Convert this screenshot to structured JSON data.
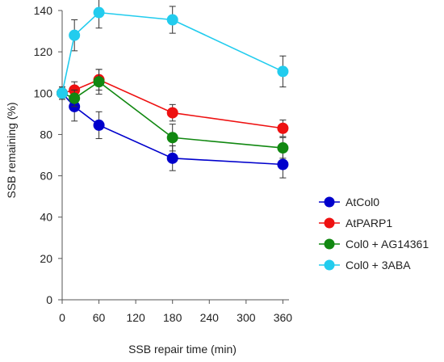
{
  "chart_data": {
    "type": "line",
    "title": "",
    "xlabel": "SSB repair time (min)",
    "ylabel": "SSB remaining (%)",
    "xlim": [
      0,
      370
    ],
    "ylim": [
      0,
      140
    ],
    "xticks": [
      0,
      60,
      120,
      180,
      240,
      300,
      360
    ],
    "yticks": [
      0,
      20,
      40,
      60,
      80,
      100,
      120,
      140
    ],
    "grid": false,
    "legend_position": "right",
    "series": [
      {
        "name": "AtCol0",
        "color": "#0000cc",
        "x": [
          0,
          20,
          60,
          180,
          360
        ],
        "y": [
          100,
          93.5,
          84.5,
          68.5,
          65.5
        ],
        "err": [
          3,
          7,
          6.5,
          6,
          6.5
        ]
      },
      {
        "name": "AtPARP1",
        "color": "#ee1111",
        "x": [
          0,
          20,
          60,
          180,
          360
        ],
        "y": [
          100,
          101.5,
          106.5,
          90.5,
          83
        ],
        "err": [
          3,
          4,
          5,
          4,
          4
        ]
      },
      {
        "name": "Col0 + AG14361",
        "color": "#118811",
        "x": [
          0,
          20,
          60,
          180,
          360
        ],
        "y": [
          100,
          97.5,
          105.5,
          78.5,
          73.5
        ],
        "err": [
          3,
          4,
          6,
          6.5,
          5
        ]
      },
      {
        "name": "Col0 + 3ABA",
        "color": "#22ccee",
        "x": [
          0,
          20,
          60,
          180,
          360
        ],
        "y": [
          100,
          128,
          139,
          135.5,
          110.5
        ],
        "err": [
          3,
          7.5,
          7.5,
          6.5,
          7.5
        ]
      }
    ]
  }
}
